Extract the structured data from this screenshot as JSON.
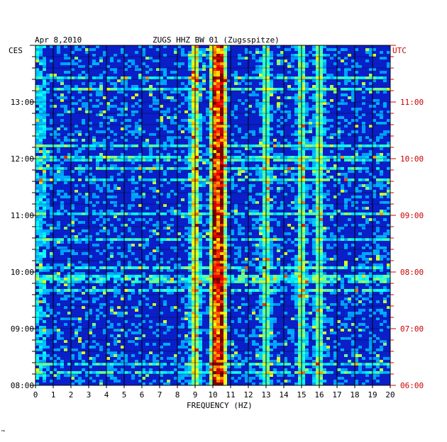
{
  "header": {
    "date": "Apr 8,2010",
    "station": "ZUGS HHZ BW 01 (Zugsspitze)"
  },
  "left_axis_label": "CES",
  "right_axis_label": "UTC",
  "corner_mark": "™",
  "colors": {
    "background_field": "#0a1fc8",
    "left_time_labels": "#000000",
    "right_time_labels": "#cc0000",
    "gridlines": "#000000"
  },
  "chart_data": {
    "type": "heatmap",
    "title": "ZUGS HHZ BW 01 (Zugsspitze)",
    "date": "Apr 8,2010",
    "xlabel": "FREQUENCY (HZ)",
    "xlim": [
      0,
      20
    ],
    "x_ticks": [
      "0",
      "1",
      "2",
      "3",
      "4",
      "5",
      "6",
      "7",
      "8",
      "9",
      "10",
      "11",
      "12",
      "13",
      "14",
      "15",
      "16",
      "17",
      "18",
      "19",
      "20"
    ],
    "left_ylabel": "CES",
    "right_ylabel": "UTC",
    "left_time_ticks": [
      "13:00",
      "12:00",
      "11:00",
      "10:00",
      "09:00",
      "08:00"
    ],
    "right_time_ticks": [
      "11:00",
      "10:00",
      "09:00",
      "08:00",
      "07:00",
      "06:00"
    ],
    "time_range_local": [
      "08:00",
      "13:55"
    ],
    "grid": true,
    "colormap": "jet",
    "notable_bands_hz": [
      {
        "center": 9.0,
        "strength": "moderate"
      },
      {
        "center": 10.1,
        "strength": "strong"
      },
      {
        "center": 10.5,
        "strength": "strongest"
      },
      {
        "center": 13.0,
        "strength": "weak"
      },
      {
        "center": 15.0,
        "strength": "weak"
      },
      {
        "center": 16.0,
        "strength": "weak"
      }
    ]
  }
}
